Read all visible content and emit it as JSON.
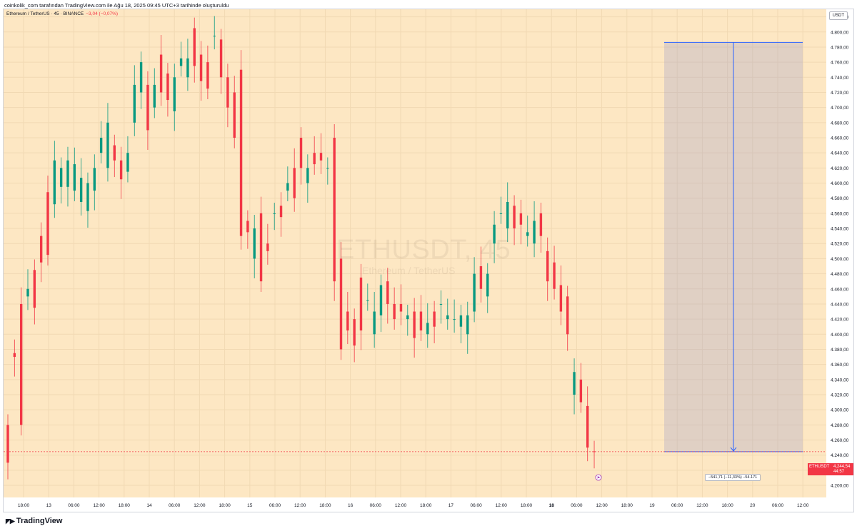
{
  "caption": "coinkolik_com tarafından TradingView.com ile Ağu 18, 2025 09:45 UTC+3 tarihinde oluşturuldu",
  "legend": {
    "text": "Ethereum / TetherUS · 45 · BINANCE",
    "change": "−3,04 (−0,07%)"
  },
  "unit": "USDT",
  "watermark": {
    "title": "ETHUSDT, 45",
    "subtitle": "Ethereum / TetherUS"
  },
  "brand": "TradingView",
  "measure": {
    "label": "−541,71 (−11,33%) −54.171"
  },
  "price_tag": {
    "symbol": "ETHUSDT",
    "value": "4,244,54",
    "countdown": "44:57"
  },
  "chart_data": {
    "type": "candlestick",
    "title": "",
    "xlabel": "",
    "ylabel": "",
    "ylim": [
      4184,
      4830
    ],
    "grid": true,
    "y_ticks": [
      4200,
      4220,
      4240,
      4260,
      4280,
      4300,
      4320,
      4340,
      4360,
      4380,
      4400,
      4420,
      4440,
      4460,
      4480,
      4500,
      4520,
      4540,
      4560,
      4580,
      4600,
      4620,
      4640,
      4660,
      4680,
      4700,
      4720,
      4740,
      4760,
      4780,
      4800,
      4820
    ],
    "y_tick_labels": [
      "4.200,00",
      "4.220,00",
      "4.240,00",
      "4.260,00",
      "4.280,00",
      "4.300,00",
      "4.320,00",
      "4.340,00",
      "4.360,00",
      "4.380,00",
      "4.400,00",
      "4.420,00",
      "4.440,00",
      "4.460,00",
      "4.480,00",
      "4.500,00",
      "4.520,00",
      "4.540,00",
      "4.560,00",
      "4.580,00",
      "4.600,00",
      "4.620,00",
      "4.640,00",
      "4.660,00",
      "4.680,00",
      "4.700,00",
      "4.720,00",
      "4.740,00",
      "4.760,00",
      "4.780,00",
      "4.800,00",
      "4.820,00"
    ],
    "x_tick_labels": [
      "18:00",
      "13",
      "06:00",
      "12:00",
      "18:00",
      "14",
      "06:00",
      "12:00",
      "18:00",
      "15",
      "06:00",
      "12:00",
      "18:00",
      "16",
      "06:00",
      "12:00",
      "18:00",
      "17",
      "06:00",
      "12:00",
      "18:00",
      "18",
      "06:00",
      "12:00",
      "18:00",
      "19",
      "06:00",
      "12:00",
      "18:00",
      "20",
      "06:00",
      "12:00"
    ],
    "x_tick_bold": [
      false,
      false,
      false,
      false,
      false,
      false,
      false,
      false,
      false,
      false,
      false,
      false,
      false,
      false,
      false,
      false,
      false,
      false,
      false,
      false,
      false,
      true,
      false,
      false,
      false,
      false,
      false,
      false,
      false,
      false,
      false,
      false
    ],
    "candles": [
      [
        4280,
        4230
      ],
      [
        4375,
        4370
      ],
      [
        4440,
        4280
      ],
      [
        4450,
        4460
      ],
      [
        4485,
        4435
      ],
      [
        4530,
        4495
      ],
      [
        4588,
        4505
      ],
      [
        4572,
        4630
      ],
      [
        4595,
        4620
      ],
      [
        4595,
        4630
      ],
      [
        4590,
        4625
      ],
      [
        4575,
        4607
      ],
      [
        4563,
        4600
      ],
      [
        4590,
        4620
      ],
      [
        4640,
        4660
      ],
      [
        4620,
        4680
      ],
      [
        4650,
        4630
      ],
      [
        4630,
        4605
      ],
      [
        4615,
        4640
      ],
      [
        4680,
        4730
      ],
      [
        4720,
        4760
      ],
      [
        4730,
        4670
      ],
      [
        4700,
        4730
      ],
      [
        4770,
        4720
      ],
      [
        4745,
        4710
      ],
      [
        4695,
        4740
      ],
      [
        4755,
        4765
      ],
      [
        4740,
        4765
      ],
      [
        4805,
        4755
      ],
      [
        4770,
        4735
      ],
      [
        4760,
        4725
      ],
      [
        4795,
        4795
      ],
      [
        4790,
        4740
      ],
      [
        4740,
        4700
      ],
      [
        4720,
        4660
      ],
      [
        4750,
        4530
      ],
      [
        4550,
        4535
      ],
      [
        4500,
        4540
      ],
      [
        4560,
        4470
      ],
      [
        4520,
        4510
      ],
      [
        4560,
        4560
      ],
      [
        4570,
        4555
      ],
      [
        4590,
        4600
      ],
      [
        4620,
        4580
      ],
      [
        4660,
        4620
      ],
      [
        4600,
        4620
      ],
      [
        4640,
        4625
      ],
      [
        4640,
        4630
      ],
      [
        4620,
        4620
      ],
      [
        4660,
        4470
      ],
      [
        4500,
        4380
      ],
      [
        4430,
        4405
      ],
      [
        4420,
        4385
      ],
      [
        4475,
        4405
      ],
      [
        4445,
        4445
      ],
      [
        4400,
        4430
      ],
      [
        4425,
        4465
      ],
      [
        4470,
        4440
      ],
      [
        4440,
        4420
      ],
      [
        4440,
        4430
      ],
      [
        4420,
        4425
      ],
      [
        4430,
        4395
      ],
      [
        4430,
        4405
      ],
      [
        4400,
        4415
      ],
      [
        4430,
        4410
      ],
      [
        4440,
        4440
      ],
      [
        4420,
        4425
      ],
      [
        4420,
        4420
      ],
      [
        4410,
        4425
      ],
      [
        4400,
        4425
      ],
      [
        4430,
        4480
      ],
      [
        4490,
        4460
      ],
      [
        4450,
        4480
      ],
      [
        4520,
        4545
      ],
      [
        4560,
        4560
      ],
      [
        4540,
        4575
      ],
      [
        4570,
        4540
      ],
      [
        4560,
        4545
      ],
      [
        4530,
        4535
      ],
      [
        4520,
        4550
      ],
      [
        4560,
        4530
      ],
      [
        4510,
        4470
      ],
      [
        4495,
        4460
      ],
      [
        4465,
        4430
      ],
      [
        4450,
        4400
      ],
      [
        4320,
        4350
      ],
      [
        4340,
        4310
      ],
      [
        4305,
        4250
      ],
      [
        4245,
        4244.54
      ]
    ],
    "current_price": 4244.54,
    "measure_range": [
      4244.54,
      4786.25
    ]
  }
}
